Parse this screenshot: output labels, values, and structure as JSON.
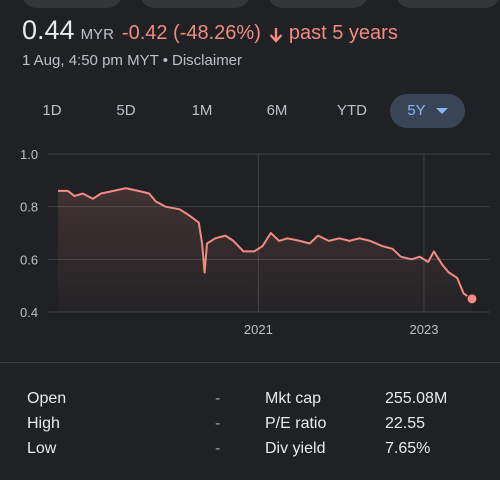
{
  "quote": {
    "price": "0.44",
    "currency": "MYR",
    "change": "-0.42 (-48.26%)",
    "period": "past 5 years",
    "timestamp": "1 Aug, 4:50 pm MYT",
    "separator": "•",
    "disclaimer": "Disclaimer"
  },
  "ranges": {
    "tabs": [
      {
        "label": "1D"
      },
      {
        "label": "5D"
      },
      {
        "label": "1M"
      },
      {
        "label": "6M"
      },
      {
        "label": "YTD"
      },
      {
        "label": "5Y"
      }
    ],
    "selected": "5Y"
  },
  "colors": {
    "background": "#202124",
    "line": "#f28b82",
    "negative": "#f28b82",
    "accent": "#8ab4f8"
  },
  "chart_data": {
    "type": "area",
    "ylim": [
      0.4,
      1.0
    ],
    "yticks": [
      "1.0",
      "0.8",
      "0.6",
      "0.4"
    ],
    "yticks_values": [
      1.0,
      0.8,
      0.6,
      0.4
    ],
    "xticks": [
      "2021",
      "2023"
    ],
    "xticks_values": [
      2021.0,
      2023.0
    ],
    "xlim": [
      2018.58,
      2023.58
    ],
    "grid": true,
    "series": [
      {
        "values": [
          [
            2018.58,
            0.86
          ],
          [
            2018.7,
            0.86
          ],
          [
            2018.78,
            0.84
          ],
          [
            2018.88,
            0.85
          ],
          [
            2019.0,
            0.83
          ],
          [
            2019.1,
            0.85
          ],
          [
            2019.25,
            0.86
          ],
          [
            2019.4,
            0.87
          ],
          [
            2019.55,
            0.86
          ],
          [
            2019.68,
            0.85
          ],
          [
            2019.76,
            0.82
          ],
          [
            2019.88,
            0.8
          ],
          [
            2020.05,
            0.79
          ],
          [
            2020.15,
            0.77
          ],
          [
            2020.28,
            0.74
          ],
          [
            2020.32,
            0.66
          ],
          [
            2020.35,
            0.55
          ],
          [
            2020.38,
            0.66
          ],
          [
            2020.48,
            0.68
          ],
          [
            2020.6,
            0.69
          ],
          [
            2020.7,
            0.67
          ],
          [
            2020.82,
            0.63
          ],
          [
            2020.95,
            0.63
          ],
          [
            2021.05,
            0.65
          ],
          [
            2021.15,
            0.7
          ],
          [
            2021.25,
            0.67
          ],
          [
            2021.35,
            0.68
          ],
          [
            2021.5,
            0.67
          ],
          [
            2021.62,
            0.66
          ],
          [
            2021.72,
            0.69
          ],
          [
            2021.85,
            0.67
          ],
          [
            2021.98,
            0.68
          ],
          [
            2022.1,
            0.67
          ],
          [
            2022.22,
            0.68
          ],
          [
            2022.35,
            0.67
          ],
          [
            2022.5,
            0.65
          ],
          [
            2022.62,
            0.64
          ],
          [
            2022.72,
            0.61
          ],
          [
            2022.85,
            0.6
          ],
          [
            2022.95,
            0.61
          ],
          [
            2023.05,
            0.59
          ],
          [
            2023.12,
            0.63
          ],
          [
            2023.22,
            0.58
          ],
          [
            2023.3,
            0.55
          ],
          [
            2023.4,
            0.53
          ],
          [
            2023.48,
            0.47
          ],
          [
            2023.58,
            0.45
          ]
        ]
      }
    ]
  },
  "stats": {
    "left": [
      {
        "label": "Open",
        "value": "-"
      },
      {
        "label": "High",
        "value": "-"
      },
      {
        "label": "Low",
        "value": "-"
      }
    ],
    "right": [
      {
        "label": "Mkt cap",
        "value": "255.08M"
      },
      {
        "label": "P/E ratio",
        "value": "22.55"
      },
      {
        "label": "Div yield",
        "value": "7.65%"
      }
    ]
  }
}
